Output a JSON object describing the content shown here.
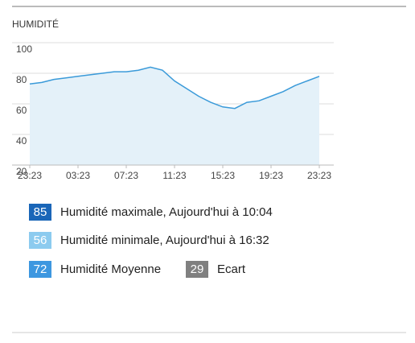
{
  "chart_data": {
    "type": "area",
    "title": "HUMIDITÉ",
    "categories": [
      "23:23",
      null,
      null,
      null,
      "03:23",
      null,
      null,
      null,
      "07:23",
      null,
      null,
      null,
      "11:23",
      null,
      null,
      null,
      "15:23",
      null,
      null,
      null,
      "19:23",
      null,
      null,
      null,
      "23:23"
    ],
    "values": [
      73,
      74,
      76,
      77,
      78,
      79,
      80,
      81,
      81,
      82,
      84,
      82,
      75,
      70,
      65,
      61,
      58,
      57,
      61,
      62,
      65,
      68,
      72,
      75,
      78
    ],
    "color": "#3a9ad9",
    "fill": "#e4f1f9",
    "ylim": [
      20,
      100
    ],
    "yticks": [
      20,
      40,
      60,
      80,
      100
    ],
    "grid": true
  },
  "stats": [
    {
      "value": 85,
      "label": "Humidité maximale, Aujourd'hui à 10:04",
      "color": "#1a66b8"
    },
    {
      "value": 56,
      "label": "Humidité minimale, Aujourd'hui à 16:32",
      "color": "#8ccbef"
    },
    {
      "value": 72,
      "label": "Humidité Moyenne",
      "color": "#3d97e0"
    },
    {
      "value": 29,
      "label": "Ecart",
      "color": "#808080"
    }
  ]
}
